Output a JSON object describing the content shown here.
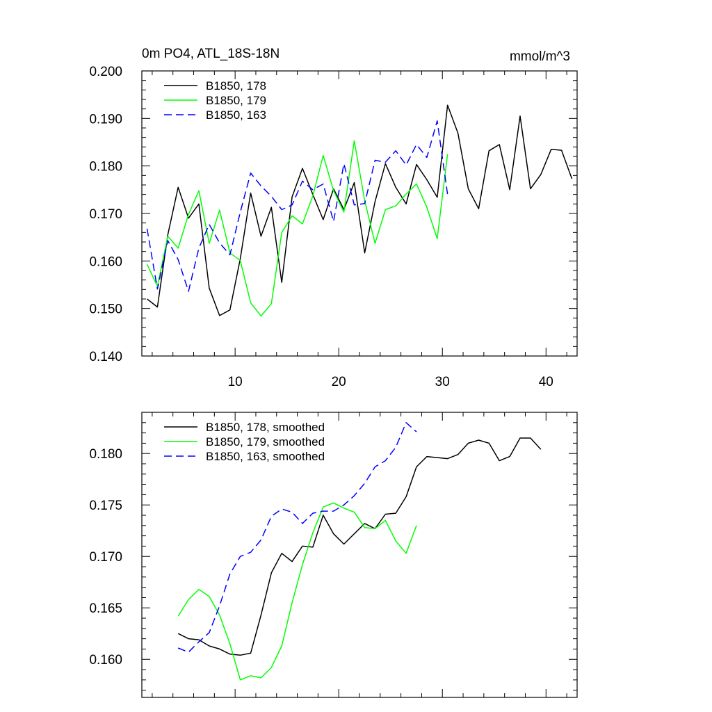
{
  "figure": {
    "title_left": "0m PO4, ATL_18S-18N",
    "title_right": "mmol/m^3"
  },
  "chart_data": [
    {
      "type": "line",
      "title": "0m PO4, ATL_18S-18N",
      "units": "mmol/m^3",
      "xlim": [
        1.0,
        43.0
      ],
      "ylim": [
        0.14,
        0.2
      ],
      "x_ticks": [
        10,
        20,
        30,
        40
      ],
      "y_ticks": [
        0.14,
        0.15,
        0.16,
        0.17,
        0.18,
        0.19,
        0.2
      ],
      "y_tick_labels": [
        "0.140",
        "0.150",
        "0.160",
        "0.170",
        "0.180",
        "0.190",
        "0.200"
      ],
      "grid": false,
      "legend_position": "top-left",
      "series": [
        {
          "name": "B1850, 178",
          "color": "#000000",
          "dash": "solid",
          "x": [
            1.5,
            2.5,
            3.5,
            4.5,
            5.5,
            6.5,
            7.5,
            8.5,
            9.5,
            10.5,
            11.5,
            12.5,
            13.5,
            14.5,
            15.5,
            16.5,
            17.5,
            18.5,
            19.5,
            20.5,
            21.5,
            22.5,
            23.5,
            24.5,
            25.5,
            26.5,
            27.5,
            28.5,
            29.5,
            30.5,
            31.5,
            32.5,
            33.5,
            34.5,
            35.5,
            36.5,
            37.5,
            38.5,
            39.5,
            40.5,
            41.5,
            42.5
          ],
          "y": [
            0.152,
            0.1503,
            0.1655,
            0.1755,
            0.169,
            0.172,
            0.1543,
            0.1485,
            0.1497,
            0.1605,
            0.1743,
            0.1652,
            0.1713,
            0.1555,
            0.1735,
            0.1795,
            0.174,
            0.1687,
            0.1752,
            0.1708,
            0.1765,
            0.1617,
            0.1725,
            0.1805,
            0.1755,
            0.172,
            0.1803,
            0.1771,
            0.1734,
            0.1928,
            0.1869,
            0.1752,
            0.171,
            0.1832,
            0.1845,
            0.175,
            0.1905,
            0.1752,
            0.1782,
            0.1835,
            0.1833,
            0.1773
          ]
        },
        {
          "name": "B1850, 179",
          "color": "#00ff00",
          "dash": "solid",
          "x": [
            1.5,
            2.5,
            3.5,
            4.5,
            5.5,
            6.5,
            7.5,
            8.5,
            9.5,
            10.5,
            11.5,
            12.5,
            13.5,
            14.5,
            15.5,
            16.5,
            17.5,
            18.5,
            19.5,
            20.5,
            21.5,
            22.5,
            23.5,
            24.5,
            25.5,
            26.5,
            27.5,
            28.5,
            29.5,
            30.5
          ],
          "y": [
            0.1593,
            0.1547,
            0.1652,
            0.1627,
            0.1698,
            0.1748,
            0.1637,
            0.1707,
            0.1617,
            0.1601,
            0.1512,
            0.1484,
            0.151,
            0.166,
            0.1695,
            0.1678,
            0.1737,
            0.1822,
            0.1748,
            0.1703,
            0.1853,
            0.1727,
            0.1637,
            0.1708,
            0.1716,
            0.1741,
            0.1762,
            0.1713,
            0.1647,
            0.1825
          ]
        },
        {
          "name": "B1850, 163",
          "color": "#0000ff",
          "dash": "dashed",
          "x": [
            1.5,
            2.5,
            3.5,
            4.5,
            5.5,
            6.5,
            7.5,
            8.5,
            9.5,
            10.5,
            11.5,
            12.5,
            13.5,
            14.5,
            15.5,
            16.5,
            17.5,
            18.5,
            19.5,
            20.5,
            21.5,
            22.5,
            23.5,
            24.5,
            25.5,
            26.5,
            27.5,
            28.5,
            29.5,
            30.5
          ],
          "y": [
            0.1668,
            0.1541,
            0.1643,
            0.1603,
            0.1536,
            0.1627,
            0.1677,
            0.1638,
            0.1613,
            0.1703,
            0.1785,
            0.1758,
            0.1736,
            0.1708,
            0.1718,
            0.1768,
            0.175,
            0.1762,
            0.1683,
            0.1805,
            0.1718,
            0.1721,
            0.1812,
            0.1808,
            0.1832,
            0.1802,
            0.1845,
            0.1818,
            0.1895,
            0.174
          ]
        }
      ]
    },
    {
      "type": "line",
      "xlim": [
        1.0,
        43.0
      ],
      "ylim": [
        0.1563,
        0.184
      ],
      "x_ticks": [
        10,
        20,
        30,
        40
      ],
      "y_ticks": [
        0.16,
        0.165,
        0.17,
        0.175,
        0.18
      ],
      "y_tick_labels": [
        "0.160",
        "0.165",
        "0.170",
        "0.175",
        "0.180"
      ],
      "grid": false,
      "legend_position": "top-left",
      "series": [
        {
          "name": "B1850, 178, smoothed",
          "color": "#000000",
          "dash": "solid",
          "x": [
            4.5,
            5.5,
            6.5,
            7.5,
            8.5,
            9.5,
            10.5,
            11.5,
            12.5,
            13.5,
            14.5,
            15.5,
            16.5,
            17.5,
            18.5,
            19.5,
            20.5,
            21.5,
            22.5,
            23.5,
            24.5,
            25.5,
            26.5,
            27.5,
            28.5,
            29.5,
            30.5,
            31.5,
            32.5,
            33.5,
            34.5,
            35.5,
            36.5,
            37.5,
            38.5,
            39.5
          ],
          "y": [
            0.1625,
            0.162,
            0.1619,
            0.1613,
            0.161,
            0.1605,
            0.1604,
            0.1606,
            0.1643,
            0.1684,
            0.1703,
            0.1695,
            0.171,
            0.1709,
            0.174,
            0.1722,
            0.1712,
            0.1722,
            0.1732,
            0.1727,
            0.1741,
            0.1742,
            0.1758,
            0.1787,
            0.1797,
            0.1796,
            0.1795,
            0.1799,
            0.181,
            0.1813,
            0.181,
            0.1793,
            0.1797,
            0.1815,
            0.1815,
            0.1804
          ]
        },
        {
          "name": "B1850, 179, smoothed",
          "color": "#00ff00",
          "dash": "solid",
          "x": [
            4.5,
            5.5,
            6.5,
            7.5,
            8.5,
            9.5,
            10.5,
            11.5,
            12.5,
            13.5,
            14.5,
            15.5,
            16.5,
            17.5,
            18.5,
            19.5,
            20.5,
            21.5,
            22.5,
            23.5,
            24.5,
            25.5,
            26.5,
            27.5
          ],
          "y": [
            0.1642,
            0.1658,
            0.1668,
            0.1661,
            0.1643,
            0.1615,
            0.158,
            0.1584,
            0.1582,
            0.1592,
            0.1613,
            0.1655,
            0.1692,
            0.1723,
            0.1748,
            0.1752,
            0.1747,
            0.1743,
            0.1728,
            0.1727,
            0.1735,
            0.1715,
            0.1703,
            0.173
          ]
        },
        {
          "name": "B1850, 163, smoothed",
          "color": "#0000ff",
          "dash": "dashed",
          "x": [
            4.5,
            5.5,
            6.5,
            7.5,
            8.5,
            9.5,
            10.5,
            11.5,
            12.5,
            13.5,
            14.5,
            15.5,
            16.5,
            17.5,
            18.5,
            19.5,
            20.5,
            21.5,
            22.5,
            23.5,
            24.5,
            25.5,
            26.5,
            27.5
          ],
          "y": [
            0.1611,
            0.1607,
            0.1617,
            0.1626,
            0.1652,
            0.1683,
            0.17,
            0.1704,
            0.1716,
            0.1739,
            0.1746,
            0.1743,
            0.1732,
            0.1742,
            0.1744,
            0.1744,
            0.175,
            0.1759,
            0.1771,
            0.1787,
            0.1793,
            0.1806,
            0.183,
            0.1821
          ]
        }
      ]
    }
  ]
}
